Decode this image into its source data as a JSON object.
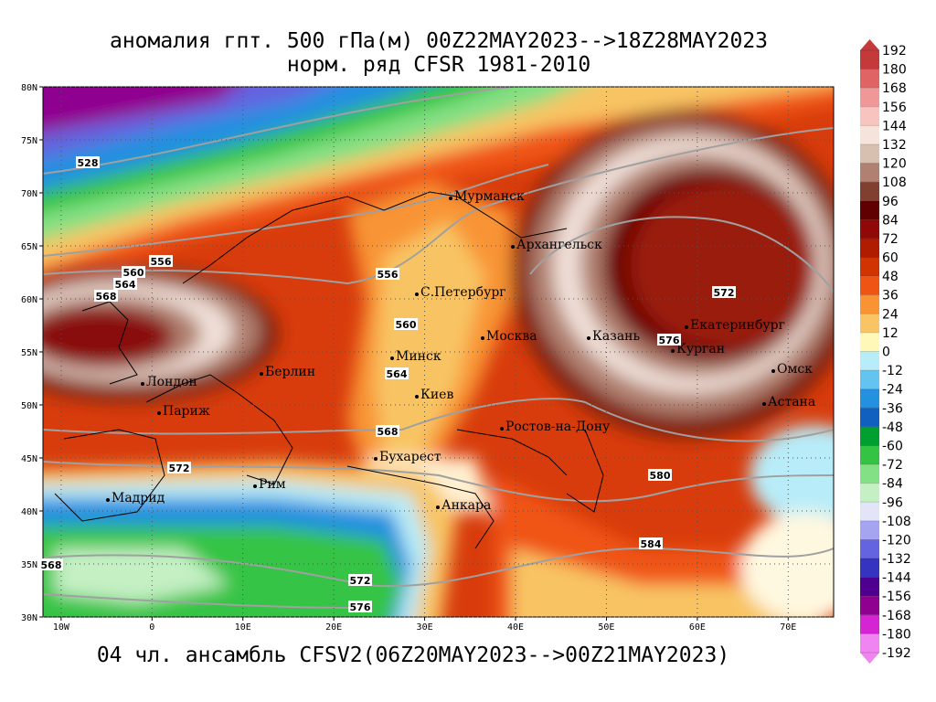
{
  "map": {
    "title": "аномалия гпт. 500 гПа(м) 00Z22MAY2023-->18Z28MAY2023",
    "subtitle": "норм. ряд CFSR 1981-2010",
    "caption": "04 чл. ансамбль CFSV2(06Z20MAY2023-->00Z21MAY2023)",
    "xlim": [
      -12,
      75
    ],
    "ylim": [
      30,
      80
    ],
    "xticks": [
      {
        "value": -10,
        "label": "10W"
      },
      0,
      {
        "value": 10,
        "label": "10E"
      },
      {
        "value": 20,
        "label": "20E"
      },
      {
        "value": 30,
        "label": "30E"
      },
      {
        "value": 40,
        "label": "40E"
      },
      {
        "value": 50,
        "label": "50E"
      },
      {
        "value": 60,
        "label": "60E"
      },
      {
        "value": 70,
        "label": "70E"
      }
    ],
    "yticks": [
      {
        "value": 30,
        "label": "30N"
      },
      {
        "value": 35,
        "label": "35N"
      },
      {
        "value": 40,
        "label": "40N"
      },
      {
        "value": 45,
        "label": "45N"
      },
      {
        "value": 50,
        "label": "50N"
      },
      {
        "value": 55,
        "label": "55N"
      },
      {
        "value": 60,
        "label": "60N"
      },
      {
        "value": 65,
        "label": "65N"
      },
      {
        "value": 70,
        "label": "70N"
      },
      {
        "value": 75,
        "label": "75N"
      },
      {
        "value": 80,
        "label": "80N"
      }
    ],
    "grid": true,
    "cities": [
      "Мурманск",
      "Архангельск",
      "С.Петербург",
      "Москва",
      "Казань",
      "Екатеринбург",
      "Курган",
      "Омск",
      "Астана",
      "Минск",
      "Берлин",
      "Лондон",
      "Париж",
      "Киев",
      "Ростов-на-Дону",
      "Бухарест",
      "Рим",
      "Мадрид",
      "Анкара"
    ],
    "contour_labels": [
      528,
      556,
      560,
      564,
      568,
      556,
      560,
      564,
      568,
      572,
      572,
      576,
      580,
      584,
      572,
      576,
      568
    ],
    "colorbar": {
      "ticks": [
        192,
        180,
        168,
        156,
        144,
        132,
        120,
        108,
        96,
        84,
        72,
        60,
        48,
        36,
        24,
        12,
        0,
        -12,
        -24,
        -36,
        -48,
        -60,
        -72,
        -84,
        -96,
        -108,
        -120,
        -132,
        -144,
        -156,
        -168,
        -180,
        -192
      ],
      "colors": [
        "#c43a3a",
        "#e06464",
        "#f09898",
        "#f8c4c0",
        "#f4e4dc",
        "#d8c0b0",
        "#b08070",
        "#804030",
        "#600000",
        "#900808",
        "#b01c00",
        "#d03400",
        "#f05414",
        "#f89434",
        "#f8c464",
        "#fff8b8",
        "#b8ecf8",
        "#64c4f0",
        "#2490e0",
        "#1060c0",
        "#00a030",
        "#34c444",
        "#84e084",
        "#c4f0c4",
        "#e4e4f8",
        "#a4a4f0",
        "#6464e0",
        "#3434c0",
        "#500090",
        "#900090",
        "#d424d4",
        "#f084f0"
      ]
    }
  }
}
